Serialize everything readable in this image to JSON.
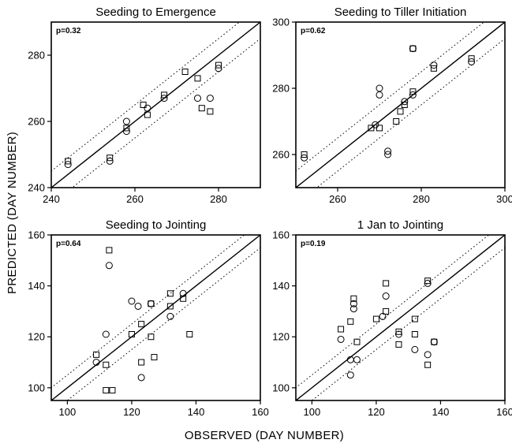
{
  "figure": {
    "ylabel": "PREDICTED (DAY NUMBER)",
    "xlabel": "OBSERVED (DAY NUMBER)"
  },
  "chart_data": [
    {
      "type": "scatter",
      "title": "Seeding to Emergence",
      "annotation": "p=0.32",
      "xlim": [
        240,
        290
      ],
      "ylim": [
        240,
        290
      ],
      "xticks": [
        240,
        260,
        280
      ],
      "yticks": [
        240,
        260,
        280
      ],
      "xtick_labels": [
        "240",
        "260",
        "280"
      ],
      "ytick_labels": [
        "240",
        "260",
        "280"
      ],
      "lines": [
        "1:1 solid",
        "±5 dotted"
      ],
      "series": [
        {
          "marker": "square",
          "points": [
            [
              244,
              248
            ],
            [
              254,
              249
            ],
            [
              258,
              258
            ],
            [
              262,
              265
            ],
            [
              263,
              262
            ],
            [
              267,
              268
            ],
            [
              272,
              275
            ],
            [
              275,
              273
            ],
            [
              276,
              264
            ],
            [
              278,
              263
            ],
            [
              280,
              277
            ]
          ]
        },
        {
          "marker": "circle",
          "points": [
            [
              244,
              247
            ],
            [
              254,
              248
            ],
            [
              258,
              260
            ],
            [
              258,
              257
            ],
            [
              263,
              264
            ],
            [
              267,
              267
            ],
            [
              275,
              267
            ],
            [
              278,
              267
            ],
            [
              280,
              276
            ]
          ]
        }
      ]
    },
    {
      "type": "scatter",
      "title": "Seeding to Tiller Initiation",
      "annotation": "p=0.62",
      "xlim": [
        250,
        300
      ],
      "ylim": [
        250,
        300
      ],
      "xticks": [
        260,
        280,
        300
      ],
      "yticks": [
        260,
        280,
        300
      ],
      "xtick_labels": [
        "260",
        "280",
        "300"
      ],
      "ytick_labels": [
        "260",
        "280",
        "300"
      ],
      "lines": [
        "1:1 solid",
        "±5 dotted"
      ],
      "series": [
        {
          "marker": "square",
          "points": [
            [
              252,
              260
            ],
            [
              268,
              268
            ],
            [
              270,
              268
            ],
            [
              274,
              270
            ],
            [
              275,
              273
            ],
            [
              276,
              275
            ],
            [
              278,
              279
            ],
            [
              278,
              292
            ],
            [
              283,
              286
            ],
            [
              292,
              289
            ]
          ]
        },
        {
          "marker": "circle",
          "points": [
            [
              252,
              259
            ],
            [
              269,
              269
            ],
            [
              270,
              280
            ],
            [
              270,
              278
            ],
            [
              272,
              261
            ],
            [
              272,
              260
            ],
            [
              276,
              276
            ],
            [
              278,
              278
            ],
            [
              278,
              292
            ],
            [
              283,
              287
            ],
            [
              292,
              288
            ]
          ]
        }
      ]
    },
    {
      "type": "scatter",
      "title": "Seeding to Jointing",
      "annotation": "p=0.64",
      "xlim": [
        95,
        160
      ],
      "ylim": [
        95,
        160
      ],
      "xticks": [
        100,
        120,
        140,
        160
      ],
      "yticks": [
        100,
        120,
        140,
        160
      ],
      "xtick_labels": [
        "100",
        "120",
        "140",
        "160"
      ],
      "ytick_labels": [
        "100",
        "120",
        "140",
        "160"
      ],
      "lines": [
        "1:1 solid",
        "±5 dotted"
      ],
      "series": [
        {
          "marker": "square",
          "points": [
            [
              109,
              113
            ],
            [
              112,
              109
            ],
            [
              113,
              154
            ],
            [
              112,
              99
            ],
            [
              114,
              99
            ],
            [
              120,
              121
            ],
            [
              123,
              125
            ],
            [
              123,
              110
            ],
            [
              126,
              133
            ],
            [
              126,
              120
            ],
            [
              127,
              112
            ],
            [
              132,
              137
            ],
            [
              132,
              132
            ],
            [
              136,
              135
            ],
            [
              138,
              121
            ]
          ]
        },
        {
          "marker": "circle",
          "points": [
            [
              109,
              110
            ],
            [
              112,
              121
            ],
            [
              113,
              148
            ],
            [
              120,
              134
            ],
            [
              122,
              132
            ],
            [
              123,
              104
            ],
            [
              126,
              133
            ],
            [
              132,
              128
            ],
            [
              136,
              137
            ]
          ]
        }
      ]
    },
    {
      "type": "scatter",
      "title": "1 Jan to Jointing",
      "annotation": "p=0.19",
      "xlim": [
        95,
        160
      ],
      "ylim": [
        95,
        160
      ],
      "xticks": [
        100,
        120,
        140,
        160
      ],
      "yticks": [
        100,
        120,
        140,
        160
      ],
      "xtick_labels": [
        "100",
        "120",
        "140",
        "160"
      ],
      "ytick_labels": [
        "100",
        "120",
        "140",
        "160"
      ],
      "lines": [
        "1:1 solid",
        "±5 dotted"
      ],
      "series": [
        {
          "marker": "square",
          "points": [
            [
              109,
              123
            ],
            [
              112,
              126
            ],
            [
              113,
              135
            ],
            [
              114,
              118
            ],
            [
              120,
              127
            ],
            [
              123,
              141
            ],
            [
              123,
              130
            ],
            [
              127,
              122
            ],
            [
              127,
              117
            ],
            [
              132,
              127
            ],
            [
              132,
              121
            ],
            [
              136,
              109
            ],
            [
              136,
              142
            ],
            [
              138,
              118
            ]
          ]
        },
        {
          "marker": "circle",
          "points": [
            [
              109,
              119
            ],
            [
              112,
              105
            ],
            [
              112,
              111
            ],
            [
              113,
              133
            ],
            [
              114,
              111
            ],
            [
              122,
              128
            ],
            [
              123,
              136
            ],
            [
              127,
              121
            ],
            [
              132,
              115
            ],
            [
              136,
              141
            ],
            [
              136,
              113
            ],
            [
              138,
              118
            ],
            [
              113,
              131
            ]
          ]
        }
      ]
    }
  ]
}
